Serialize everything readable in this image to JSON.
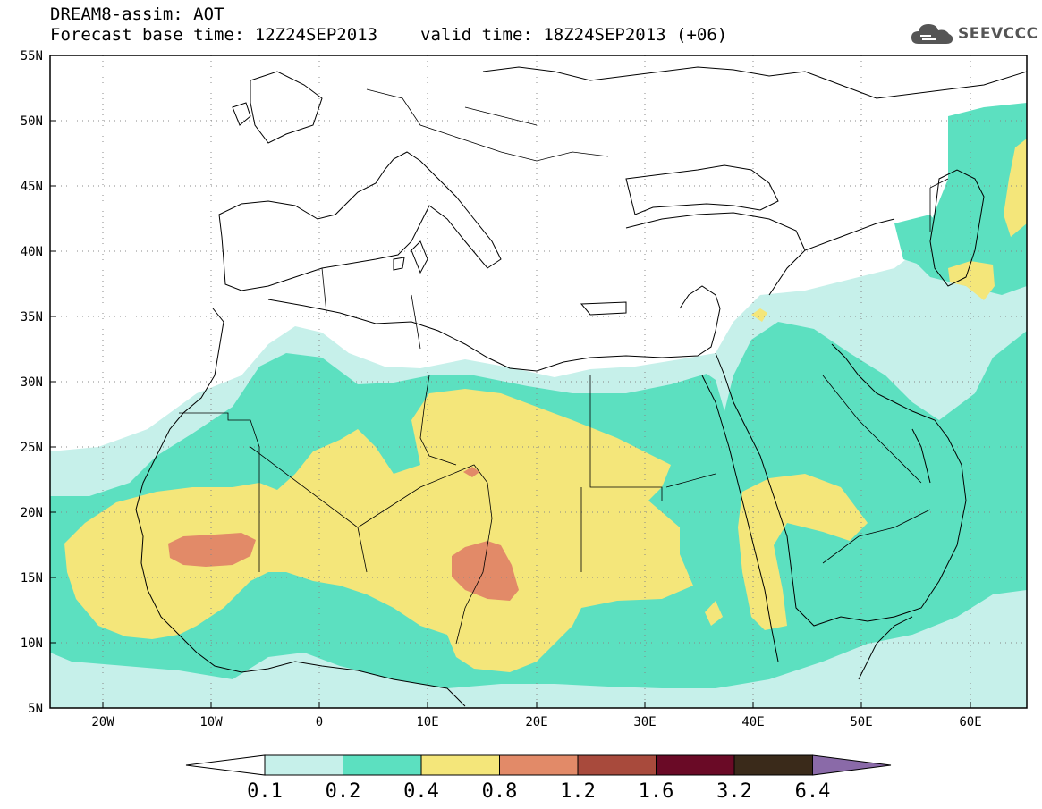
{
  "header": {
    "line1": "DREAM8-assim: AOT",
    "base_time": "Forecast base time: 12Z24SEP2013",
    "valid_time": "valid time: 18Z24SEP2013 (+06)"
  },
  "logo": {
    "text": "SEEVCCC",
    "icon": "cloud-icon",
    "color": "#555555"
  },
  "map": {
    "lat_labels": [
      "55N",
      "50N",
      "45N",
      "40N",
      "35N",
      "30N",
      "25N",
      "20N",
      "15N",
      "10N",
      "5N"
    ],
    "lon_labels": [
      "20W",
      "10W",
      "0",
      "10E",
      "20E",
      "30E",
      "40E",
      "50E",
      "60E"
    ],
    "colorbar": {
      "labels": [
        "0.1",
        "0.2",
        "0.4",
        "0.8",
        "1.2",
        "1.6",
        "3.2",
        "6.4"
      ],
      "colors": [
        "#ffffff",
        "#c6f0ea",
        "#5ce0c0",
        "#f4e67a",
        "#e28a68",
        "#a84a3c",
        "#6a0a26",
        "#3a2a1a",
        "#8a6aa8"
      ]
    }
  }
}
